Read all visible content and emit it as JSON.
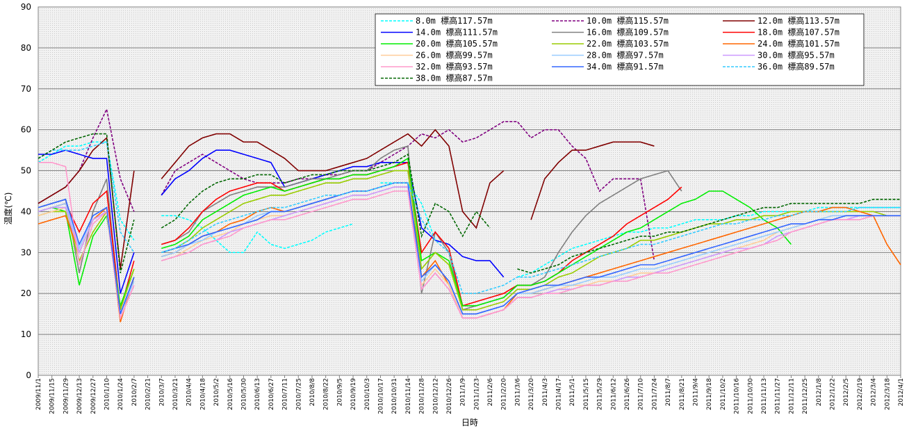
{
  "chart_data": {
    "type": "line",
    "x_label": "日時",
    "y_label": "温度(℃)",
    "ylim": [
      0,
      90
    ],
    "yticks": [
      0,
      10,
      20,
      30,
      40,
      50,
      60,
      70,
      80,
      90
    ],
    "grid": true,
    "categories": [
      "2009/11/1",
      "2009/11/15",
      "2009/11/29",
      "2009/12/13",
      "2009/12/27",
      "2010/1/10",
      "2010/1/24",
      "2010/2/7",
      "2010/2/21",
      "2010/3/7",
      "2010/3/21",
      "2010/4/4",
      "2010/4/18",
      "2010/5/2",
      "2010/5/16",
      "2010/5/30",
      "2010/6/13",
      "2010/6/27",
      "2010/7/11",
      "2010/7/25",
      "2010/8/8",
      "2010/8/22",
      "2010/9/5",
      "2010/9/19",
      "2010/10/3",
      "2010/10/17",
      "2010/10/31",
      "2010/11/14",
      "2010/11/28",
      "2010/12/12",
      "2010/12/26",
      "2011/1/9",
      "2011/1/23",
      "2011/2/6",
      "2011/2/20",
      "2011/3/6",
      "2011/3/20",
      "2011/4/3",
      "2011/4/17",
      "2011/5/1",
      "2011/5/15",
      "2011/5/29",
      "2011/6/12",
      "2011/6/26",
      "2011/7/10",
      "2011/7/24",
      "2011/8/7",
      "2011/8/21",
      "2011/9/4",
      "2011/9/18",
      "2011/10/2",
      "2011/10/16",
      "2011/10/30",
      "2011/11/13",
      "2011/11/27",
      "2011/12/11",
      "2011/12/25",
      "2012/1/8",
      "2012/1/22",
      "2012/2/5",
      "2012/2/19",
      "2012/3/4",
      "2012/3/18",
      "2012/4/1"
    ],
    "series": [
      {
        "name": "8.0m 標高117.57m",
        "color": "#00ffff",
        "dash": true,
        "values": [
          52,
          54,
          56,
          56,
          57,
          57,
          38,
          33,
          null,
          39,
          39,
          38,
          36,
          33,
          30,
          30,
          35,
          32,
          31,
          32,
          33,
          35,
          36,
          37,
          null,
          47,
          47,
          47,
          42,
          33,
          32,
          null,
          null,
          32,
          null,
          24,
          25,
          27,
          29,
          31,
          32,
          33,
          34,
          35,
          35,
          36,
          36,
          37,
          38,
          38,
          38,
          39,
          39,
          40,
          40,
          40,
          40,
          41,
          41,
          41,
          41,
          41,
          41,
          41
        ]
      },
      {
        "name": "10.0m 標高115.57m",
        "color": "#800080",
        "dash": true,
        "values": [
          42,
          44,
          46,
          50,
          58,
          65,
          48,
          40,
          null,
          44,
          50,
          52,
          54,
          52,
          50,
          48,
          47,
          47,
          47,
          48,
          48,
          49,
          49,
          50,
          50,
          52,
          54,
          56,
          59,
          58,
          60,
          57,
          58,
          60,
          62,
          62,
          58,
          60,
          60,
          56,
          53,
          45,
          48,
          48,
          48,
          28,
          null,
          null,
          null,
          null,
          null,
          null,
          null,
          null,
          null,
          null,
          null,
          null,
          null,
          null,
          null,
          null,
          null,
          null
        ]
      },
      {
        "name": "12.0m 標高113.57m",
        "color": "#800000",
        "dash": false,
        "values": [
          42,
          44,
          46,
          50,
          55,
          58,
          26,
          50,
          null,
          48,
          52,
          56,
          58,
          59,
          59,
          57,
          57,
          55,
          53,
          50,
          50,
          50,
          51,
          52,
          53,
          55,
          57,
          59,
          56,
          60,
          56,
          40,
          36,
          47,
          50,
          null,
          38,
          48,
          52,
          55,
          55,
          56,
          57,
          57,
          57,
          56,
          null,
          null,
          null,
          null,
          null,
          null,
          null,
          null,
          null,
          null,
          null,
          null,
          null,
          null,
          null,
          null,
          null,
          null
        ]
      },
      {
        "name": "14.0m 標高111.57m",
        "color": "#0000ff",
        "dash": false,
        "values": [
          54,
          54,
          55,
          54,
          53,
          53,
          20,
          30,
          null,
          44,
          48,
          50,
          53,
          55,
          55,
          54,
          53,
          52,
          46,
          47,
          48,
          49,
          50,
          51,
          51,
          52,
          52,
          52,
          36,
          33,
          32,
          29,
          28,
          28,
          24,
          null,
          null,
          null,
          null,
          null,
          null,
          null,
          null,
          null,
          null,
          null,
          null,
          null,
          null,
          null,
          null,
          null,
          null,
          null,
          null,
          null,
          null,
          null,
          null,
          null,
          null,
          null,
          null,
          null
        ]
      },
      {
        "name": "16.0m 標高109.57m",
        "color": "#808080",
        "dash": false,
        "values": [
          41,
          42,
          43,
          25,
          40,
          48,
          15,
          24,
          null,
          32,
          33,
          35,
          40,
          42,
          44,
          45,
          46,
          46,
          46,
          47,
          48,
          48,
          49,
          50,
          50,
          53,
          55,
          56,
          20,
          35,
          30,
          16,
          17,
          18,
          19,
          22,
          22,
          24,
          30,
          35,
          39,
          42,
          44,
          46,
          48,
          49,
          50,
          45,
          null,
          null,
          null,
          null,
          null,
          null,
          null,
          null,
          null,
          null,
          null,
          null,
          null,
          null,
          null,
          null
        ]
      },
      {
        "name": "18.0m 標高107.57m",
        "color": "#ff0000",
        "dash": false,
        "values": [
          40,
          41,
          42,
          35,
          42,
          45,
          16,
          28,
          null,
          32,
          33,
          36,
          40,
          43,
          45,
          46,
          47,
          47,
          45,
          46,
          47,
          48,
          48,
          49,
          49,
          50,
          51,
          52,
          30,
          35,
          31,
          17,
          18,
          19,
          20,
          22,
          22,
          23,
          25,
          28,
          30,
          32,
          34,
          37,
          39,
          41,
          43,
          46,
          null,
          null,
          null,
          null,
          null,
          null,
          null,
          null,
          null,
          null,
          null,
          null,
          null,
          null,
          null,
          null
        ]
      },
      {
        "name": "20.0m 標高105.57m",
        "color": "#00ee00",
        "dash": false,
        "values": [
          40,
          41,
          40,
          22,
          34,
          39,
          17,
          26,
          null,
          31,
          32,
          34,
          38,
          40,
          42,
          44,
          45,
          46,
          45,
          46,
          47,
          48,
          48,
          49,
          49,
          50,
          51,
          53,
          28,
          30,
          28,
          17,
          17,
          18,
          19,
          22,
          22,
          23,
          25,
          27,
          29,
          31,
          33,
          35,
          36,
          38,
          40,
          42,
          43,
          45,
          45,
          43,
          41,
          38,
          36,
          32,
          null,
          null,
          null,
          null,
          null,
          null,
          null,
          null
        ]
      },
      {
        "name": "22.0m 標高103.57m",
        "color": "#99cc00",
        "dash": false,
        "values": [
          39,
          40,
          40,
          28,
          35,
          40,
          16,
          26,
          null,
          30,
          31,
          33,
          36,
          38,
          40,
          42,
          43,
          44,
          44,
          45,
          46,
          47,
          47,
          48,
          48,
          49,
          50,
          50,
          26,
          30,
          27,
          16,
          16,
          17,
          18,
          21,
          21,
          22,
          24,
          25,
          27,
          29,
          30,
          31,
          33,
          33,
          34,
          35,
          36,
          37,
          37,
          38,
          38,
          39,
          39,
          40,
          40,
          40,
          40,
          40,
          40,
          40,
          39,
          39
        ]
      },
      {
        "name": "24.0m 標高101.57m",
        "color": "#ff6600",
        "dash": false,
        "values": [
          37,
          38,
          39,
          30,
          38,
          41,
          13,
          24,
          null,
          29,
          30,
          32,
          34,
          35,
          37,
          38,
          40,
          41,
          40,
          41,
          42,
          43,
          44,
          45,
          45,
          46,
          47,
          47,
          24,
          28,
          22,
          14,
          14,
          15,
          16,
          20,
          20,
          21,
          22,
          23,
          24,
          25,
          26,
          27,
          28,
          29,
          30,
          31,
          32,
          33,
          34,
          35,
          36,
          37,
          38,
          39,
          40,
          40,
          41,
          41,
          40,
          39,
          32,
          27
        ]
      },
      {
        "name": "26.0m 標高99.57m",
        "color": "#ffcc99",
        "dash": false,
        "values": [
          39,
          40,
          41,
          30,
          38,
          40,
          14,
          22,
          null,
          28,
          29,
          31,
          33,
          34,
          35,
          37,
          38,
          39,
          39,
          40,
          41,
          42,
          43,
          44,
          44,
          45,
          46,
          46,
          22,
          26,
          22,
          14,
          14,
          15,
          16,
          19,
          19,
          20,
          21,
          22,
          22,
          23,
          23,
          24,
          25,
          25,
          26,
          27,
          28,
          29,
          30,
          31,
          32,
          33,
          35,
          36,
          37,
          38,
          39,
          39,
          39,
          39,
          39,
          39
        ]
      },
      {
        "name": "28.0m 標高97.57m",
        "color": "#99ccff",
        "dash": false,
        "values": [
          40,
          41,
          42,
          31,
          39,
          41,
          15,
          23,
          null,
          29,
          30,
          32,
          33,
          35,
          36,
          37,
          39,
          40,
          40,
          41,
          42,
          43,
          44,
          45,
          45,
          46,
          47,
          47,
          23,
          27,
          23,
          15,
          15,
          16,
          17,
          20,
          20,
          21,
          22,
          22,
          23,
          24,
          24,
          25,
          26,
          26,
          27,
          28,
          29,
          30,
          31,
          32,
          33,
          34,
          35,
          36,
          37,
          38,
          39,
          39,
          39,
          39,
          39,
          39
        ]
      },
      {
        "name": "30.0m 標高95.57m",
        "color": "#cc99ff",
        "dash": false,
        "values": [
          40,
          41,
          41,
          30,
          38,
          40,
          14,
          22,
          null,
          28,
          29,
          30,
          32,
          33,
          35,
          36,
          37,
          38,
          39,
          40,
          41,
          42,
          43,
          44,
          44,
          45,
          46,
          46,
          21,
          25,
          21,
          14,
          14,
          15,
          16,
          19,
          19,
          20,
          21,
          21,
          22,
          22,
          23,
          24,
          24,
          25,
          26,
          27,
          28,
          29,
          30,
          31,
          31,
          32,
          34,
          35,
          36,
          37,
          38,
          38,
          39,
          39,
          39,
          39
        ]
      },
      {
        "name": "32.0m 標高93.57m",
        "color": "#ff99cc",
        "dash": false,
        "values": [
          52,
          52,
          51,
          27,
          37,
          40,
          14,
          22,
          null,
          28,
          29,
          30,
          32,
          33,
          34,
          36,
          37,
          38,
          38,
          39,
          40,
          41,
          42,
          43,
          43,
          44,
          45,
          45,
          21,
          25,
          21,
          14,
          14,
          15,
          16,
          19,
          19,
          20,
          20,
          21,
          22,
          22,
          23,
          23,
          24,
          25,
          25,
          26,
          27,
          28,
          29,
          30,
          31,
          32,
          33,
          35,
          36,
          37,
          38,
          38,
          38,
          39,
          39,
          39
        ]
      },
      {
        "name": "34.0m 標高91.57m",
        "color": "#3366ff",
        "dash": false,
        "values": [
          41,
          42,
          43,
          32,
          39,
          41,
          15,
          24,
          null,
          30,
          31,
          32,
          34,
          35,
          36,
          37,
          38,
          40,
          40,
          41,
          42,
          43,
          44,
          45,
          45,
          46,
          47,
          47,
          24,
          27,
          23,
          15,
          15,
          16,
          17,
          20,
          21,
          22,
          22,
          23,
          24,
          24,
          25,
          26,
          27,
          27,
          28,
          29,
          30,
          31,
          32,
          33,
          34,
          35,
          36,
          37,
          37,
          38,
          38,
          39,
          39,
          39,
          39,
          39
        ]
      },
      {
        "name": "36.0m 標高89.57m",
        "color": "#33ccff",
        "dash": true,
        "values": [
          53,
          55,
          55,
          55,
          56,
          57,
          35,
          30,
          null,
          30,
          31,
          33,
          35,
          37,
          38,
          39,
          40,
          41,
          41,
          42,
          43,
          44,
          44,
          45,
          45,
          46,
          47,
          47,
          38,
          33,
          30,
          20,
          20,
          21,
          22,
          24,
          24,
          25,
          26,
          27,
          28,
          29,
          30,
          31,
          32,
          32,
          33,
          34,
          35,
          36,
          37,
          37,
          38,
          38,
          39,
          39,
          40,
          40,
          40,
          40,
          41,
          41,
          41,
          41
        ]
      },
      {
        "name": "38.0m 標高87.57m",
        "color": "#006600",
        "dash": true,
        "values": [
          53,
          55,
          57,
          58,
          59,
          59,
          25,
          38,
          null,
          36,
          38,
          42,
          45,
          47,
          48,
          48,
          49,
          49,
          47,
          48,
          49,
          49,
          50,
          50,
          50,
          51,
          52,
          54,
          34,
          42,
          40,
          34,
          40,
          36,
          null,
          26,
          25,
          26,
          27,
          29,
          30,
          31,
          32,
          33,
          34,
          34,
          35,
          35,
          36,
          37,
          38,
          39,
          40,
          41,
          41,
          42,
          42,
          42,
          42,
          42,
          42,
          43,
          43,
          43
        ]
      }
    ]
  }
}
